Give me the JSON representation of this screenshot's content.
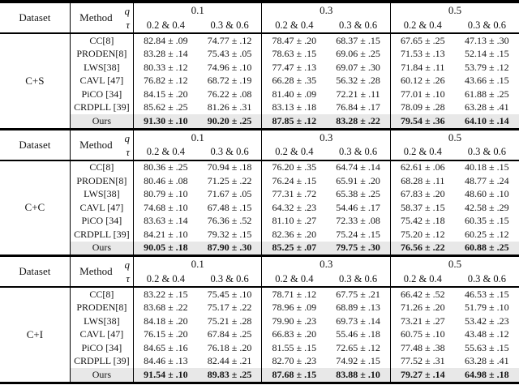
{
  "table": {
    "header": {
      "dataset_label": "Dataset",
      "method_label": "Method",
      "q_symbol": "q",
      "tau_symbol": "τ",
      "q_values": [
        "0.1",
        "0.3",
        "0.5"
      ],
      "tau_pair_labels": [
        "0.2 & 0.4",
        "0.3 & 0.6"
      ]
    },
    "colors": {
      "ours_row_bg": "#e8e8e8",
      "rule": "#000000",
      "text": "#141414"
    },
    "sections": [
      {
        "dataset": "C+S",
        "rows": [
          {
            "method": "CC[8]",
            "values": [
              "82.84 ± .09",
              "74.77 ± .12",
              "78.47 ± .20",
              "68.37 ± .15",
              "67.65 ± .25",
              "47.13 ± .30"
            ]
          },
          {
            "method": "PRODEN[8]",
            "values": [
              "83.28 ± .14",
              "75.43 ± .05",
              "78.63 ± .15",
              "69.06 ± .25",
              "71.53 ± .13",
              "52.14 ± .15"
            ]
          },
          {
            "method": "LWS[38]",
            "values": [
              "80.33 ± .12",
              "74.96 ± .10",
              "77.47 ± .13",
              "69.07 ± .30",
              "71.84 ± .11",
              "53.79 ± .12"
            ]
          },
          {
            "method": "CAVL [47]",
            "values": [
              "76.82 ± .12",
              "68.72 ± .19",
              "66.28 ± .35",
              "56.32 ± .28",
              "60.12 ± .26",
              "43.66 ± .15"
            ]
          },
          {
            "method": "PiCO [34]",
            "values": [
              "84.15 ± .20",
              "76.22 ± .08",
              "81.40 ± .09",
              "72.21 ± .11",
              "77.01 ± .10",
              "61.88 ± .25"
            ]
          },
          {
            "method": "CRDPLL [39]",
            "values": [
              "85.62 ± .25",
              "81.26 ± .31",
              "83.13 ± .18",
              "76.84 ± .17",
              "78.09 ± .28",
              "63.28 ± .41"
            ]
          },
          {
            "method": "Ours",
            "values": [
              "91.30 ± .10",
              "90.20 ± .25",
              "87.85 ± .12",
              "83.28 ± .22",
              "79.54 ± .36",
              "64.10 ± .14"
            ],
            "highlight": true
          }
        ]
      },
      {
        "dataset": "C+C",
        "rows": [
          {
            "method": "CC[8]",
            "values": [
              "80.36 ± .25",
              "70.94 ± .18",
              "76.20 ± .35",
              "64.74 ± .14",
              "62.61 ± .06",
              "40.18 ± .15"
            ]
          },
          {
            "method": "PRODEN[8]",
            "values": [
              "80.46 ± .08",
              "71.25 ± .22",
              "76.24 ± .15",
              "65.91 ± .20",
              "68.28 ± .11",
              "48.77 ± .24"
            ]
          },
          {
            "method": "LWS[38]",
            "values": [
              "80.79 ± .10",
              "71.67 ± .05",
              "77.31 ± .72",
              "65.38 ± .25",
              "67.83 ± .20",
              "48.60 ± .10"
            ]
          },
          {
            "method": "CAVL [47]",
            "values": [
              "74.68 ± .10",
              "67.48 ± .15",
              "64.32 ± .23",
              "54.46 ± .17",
              "58.37 ± .15",
              "42.58 ± .29"
            ]
          },
          {
            "method": "PiCO [34]",
            "values": [
              "83.63 ± .14",
              "76.36 ± .52",
              "81.10 ± .27",
              "72.33 ± .08",
              "75.42 ± .18",
              "60.35 ± .15"
            ]
          },
          {
            "method": "CRDPLL [39]",
            "values": [
              "84.21 ± .10",
              "79.32 ± .15",
              "82.36 ± .20",
              "75.24 ± .15",
              "75.20 ± .12",
              "60.25 ± .12"
            ]
          },
          {
            "method": "Ours",
            "values": [
              "90.05 ± .18",
              "87.90 ± .30",
              "85.25 ± .07",
              "79.75 ± .30",
              "76.56 ± .22",
              "60.88 ± .25"
            ],
            "highlight": true
          }
        ]
      },
      {
        "dataset": "C+I",
        "rows": [
          {
            "method": "CC[8]",
            "values": [
              "83.22 ± .15",
              "75.45 ± .10",
              "78.71 ± .12",
              "67.75 ± .21",
              "66.42 ± .52",
              "46.53 ± .15"
            ]
          },
          {
            "method": "PRODEN[8]",
            "values": [
              "83.68 ± .22",
              "75.17 ± .22",
              "78.96 ± .09",
              "68.89 ± .13",
              "71.26 ± .20",
              "51.79 ± .10"
            ]
          },
          {
            "method": "LWS[38]",
            "values": [
              "84.18 ± .20",
              "75.21 ± .28",
              "79.90 ± .23",
              "69.73 ± .14",
              "73.21 ± .27",
              "53.42 ± .23"
            ]
          },
          {
            "method": "CAVL [47]",
            "values": [
              "76.15 ± .20",
              "67.84 ± .25",
              "66.83 ± .20",
              "55.46 ± .18",
              "60.75 ± .10",
              "43.48 ± .12"
            ]
          },
          {
            "method": "PiCO [34]",
            "values": [
              "84.65 ± .16",
              "76.18 ± .20",
              "81.55 ± .15",
              "72.65 ± .12",
              "77.48 ± .38",
              "55.63 ± .15"
            ]
          },
          {
            "method": "CRDPLL [39]",
            "values": [
              "84.46 ± .13",
              "82.44 ± .21",
              "82.70 ± .23",
              "74.92 ± .15",
              "77.52 ± .31",
              "63.28 ± .41"
            ]
          },
          {
            "method": "Ours",
            "values": [
              "91.54 ± .10",
              "89.83 ± .25",
              "87.68 ± .15",
              "83.88 ± .10",
              "79.27 ± .14",
              "64.98 ± .18"
            ],
            "highlight": true
          }
        ]
      }
    ]
  }
}
